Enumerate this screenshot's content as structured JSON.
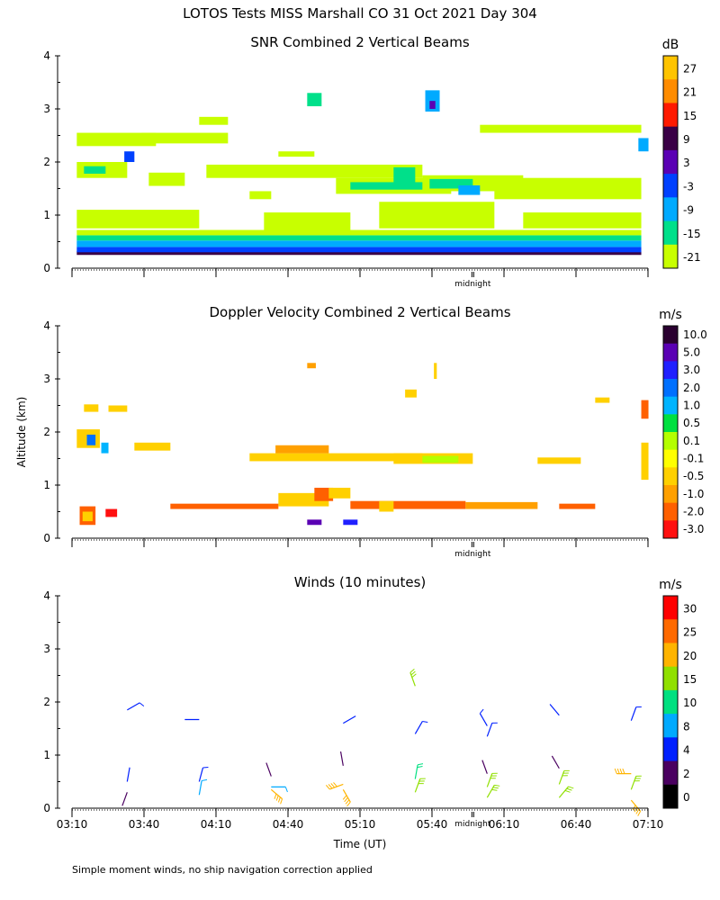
{
  "header": {
    "title": "LOTOS Tests MISS Marshall CO  31 Oct 2021 Day 304"
  },
  "axes": {
    "ylabel": "Altitude (km)",
    "xlabel": "Time (UT)",
    "y_ticks": [
      "0",
      "1",
      "2",
      "3",
      "4"
    ],
    "x_ticks": [
      "03:10",
      "03:40",
      "04:10",
      "04:40",
      "05:10",
      "05:40",
      "06:10",
      "06:40",
      "07:10"
    ],
    "midnight_label": "midnight"
  },
  "footer": {
    "note": "Simple moment winds, no ship navigation correction applied"
  },
  "chart_data": [
    {
      "type": "heatmap",
      "title": "SNR Combined 2 Vertical Beams",
      "xlim": [
        3.1667,
        7.1667
      ],
      "ylim": [
        0,
        4
      ],
      "colorbar": {
        "unit": "dB",
        "labels": [
          "27",
          "21",
          "15",
          "9",
          "3",
          "-3",
          "-9",
          "-15",
          "-21"
        ],
        "colors": [
          "#ffc400",
          "#ff8c00",
          "#ff1a00",
          "#3a0046",
          "#5a00b4",
          "#0040ff",
          "#00aaff",
          "#00e08a",
          "#c8ff00"
        ]
      },
      "layers": [
        {
          "from": 0.25,
          "to": 0.32,
          "color": "#3a0046"
        },
        {
          "from": 0.3,
          "to": 0.4,
          "color": "#0040ff"
        },
        {
          "from": 0.4,
          "to": 0.52,
          "color": "#00aaff"
        },
        {
          "from": 0.52,
          "to": 0.62,
          "color": "#00e08a"
        },
        {
          "from": 0.62,
          "to": 0.72,
          "color": "#c8ff00"
        }
      ],
      "patches": [
        {
          "t": 3.2,
          "t2": 3.55,
          "z": 1.7,
          "z2": 2.0,
          "color": "#c8ff00"
        },
        {
          "t": 3.25,
          "t2": 3.4,
          "z": 1.78,
          "z2": 1.92,
          "color": "#00e08a"
        },
        {
          "t": 3.2,
          "t2": 3.75,
          "z": 2.3,
          "z2": 2.55,
          "color": "#c8ff00"
        },
        {
          "t": 3.7,
          "t2": 3.95,
          "z": 1.55,
          "z2": 1.8,
          "color": "#c8ff00"
        },
        {
          "t": 3.2,
          "t2": 4.05,
          "z": 0.75,
          "z2": 1.1,
          "color": "#c8ff00"
        },
        {
          "t": 3.65,
          "t2": 4.25,
          "z": 2.35,
          "z2": 2.55,
          "color": "#c8ff00"
        },
        {
          "t": 4.1,
          "t2": 5.6,
          "z": 1.7,
          "z2": 1.95,
          "color": "#c8ff00"
        },
        {
          "t": 4.5,
          "t2": 5.1,
          "z": 0.7,
          "z2": 1.05,
          "color": "#c8ff00"
        },
        {
          "t": 4.6,
          "t2": 4.85,
          "z": 2.1,
          "z2": 2.2,
          "color": "#c8ff00"
        },
        {
          "t": 5.0,
          "t2": 5.8,
          "z": 1.4,
          "z2": 1.7,
          "color": "#c8ff00"
        },
        {
          "t": 5.1,
          "t2": 5.7,
          "z": 1.48,
          "z2": 1.62,
          "color": "#00e08a"
        },
        {
          "t": 5.3,
          "t2": 6.1,
          "z": 0.75,
          "z2": 1.25,
          "color": "#c8ff00"
        },
        {
          "t": 5.6,
          "t2": 6.3,
          "z": 1.45,
          "z2": 1.75,
          "color": "#c8ff00"
        },
        {
          "t": 5.65,
          "t2": 5.95,
          "z": 1.5,
          "z2": 1.68,
          "color": "#00e08a"
        },
        {
          "t": 5.85,
          "t2": 6.0,
          "z": 1.38,
          "z2": 1.56,
          "color": "#00aaff"
        },
        {
          "t": 6.1,
          "t2": 7.12,
          "z": 1.3,
          "z2": 1.7,
          "color": "#c8ff00"
        },
        {
          "t": 6.0,
          "t2": 7.12,
          "z": 2.55,
          "z2": 2.7,
          "color": "#c8ff00"
        },
        {
          "t": 6.3,
          "t2": 7.12,
          "z": 0.75,
          "z2": 1.05,
          "color": "#c8ff00"
        },
        {
          "t": 5.4,
          "t2": 5.55,
          "z": 1.55,
          "z2": 1.9,
          "color": "#00e08a"
        },
        {
          "t": 4.8,
          "t2": 4.9,
          "z": 3.05,
          "z2": 3.3,
          "color": "#00e08a"
        },
        {
          "t": 5.62,
          "t2": 5.72,
          "z": 2.95,
          "z2": 3.35,
          "color": "#00aaff"
        },
        {
          "t": 5.65,
          "t2": 5.69,
          "z": 3.0,
          "z2": 3.15,
          "color": "#5a00b4"
        },
        {
          "t": 3.53,
          "t2": 3.6,
          "z": 2.0,
          "z2": 2.2,
          "color": "#0040ff"
        },
        {
          "t": 7.1,
          "t2": 7.17,
          "z": 2.2,
          "z2": 2.45,
          "color": "#00aaff"
        },
        {
          "t": 4.05,
          "t2": 4.25,
          "z": 2.7,
          "z2": 2.85,
          "color": "#c8ff00"
        },
        {
          "t": 4.4,
          "t2": 4.55,
          "z": 1.3,
          "z2": 1.45,
          "color": "#c8ff00"
        }
      ]
    },
    {
      "type": "heatmap",
      "title": "Doppler Velocity Combined 2 Vertical Beams",
      "xlim": [
        3.1667,
        7.1667
      ],
      "ylim": [
        0,
        4
      ],
      "colorbar": {
        "unit": "m/s",
        "labels": [
          "10.0",
          "5.0",
          "3.0",
          "2.0",
          "1.0",
          "0.5",
          "0.1",
          "-0.1",
          "-0.5",
          "-1.0",
          "-2.0",
          "-3.0"
        ],
        "colors": [
          "#2a0030",
          "#5a00b4",
          "#2020ff",
          "#0070ff",
          "#00b4ff",
          "#00e040",
          "#b4ff00",
          "#ffff00",
          "#ffd000",
          "#ffa000",
          "#ff6000",
          "#ff1010"
        ]
      },
      "patches": [
        {
          "t": 3.22,
          "t2": 3.33,
          "z": 0.25,
          "z2": 0.6,
          "color": "#ff6000"
        },
        {
          "t": 3.24,
          "t2": 3.31,
          "z": 0.32,
          "z2": 0.5,
          "color": "#ffd000"
        },
        {
          "t": 3.4,
          "t2": 3.48,
          "z": 0.4,
          "z2": 0.55,
          "color": "#ff1010"
        },
        {
          "t": 3.2,
          "t2": 3.36,
          "z": 1.7,
          "z2": 2.05,
          "color": "#ffd000"
        },
        {
          "t": 3.27,
          "t2": 3.33,
          "z": 1.75,
          "z2": 1.95,
          "color": "#0070ff"
        },
        {
          "t": 3.37,
          "t2": 3.42,
          "z": 1.6,
          "z2": 1.8,
          "color": "#00b4ff"
        },
        {
          "t": 3.6,
          "t2": 3.85,
          "z": 1.65,
          "z2": 1.8,
          "color": "#ffd000"
        },
        {
          "t": 3.25,
          "t2": 3.35,
          "z": 2.38,
          "z2": 2.52,
          "color": "#ffd000"
        },
        {
          "t": 3.42,
          "t2": 3.55,
          "z": 2.38,
          "z2": 2.5,
          "color": "#ffd000"
        },
        {
          "t": 4.4,
          "t2": 5.6,
          "z": 1.45,
          "z2": 1.6,
          "color": "#ffd000"
        },
        {
          "t": 4.58,
          "t2": 4.95,
          "z": 1.6,
          "z2": 1.75,
          "color": "#ffa000"
        },
        {
          "t": 5.4,
          "t2": 5.95,
          "z": 1.4,
          "z2": 1.6,
          "color": "#ffd000"
        },
        {
          "t": 5.6,
          "t2": 5.85,
          "z": 1.42,
          "z2": 1.55,
          "color": "#b4ff00"
        },
        {
          "t": 6.4,
          "t2": 6.7,
          "z": 1.4,
          "z2": 1.52,
          "color": "#ffd000"
        },
        {
          "t": 4.6,
          "t2": 4.95,
          "z": 0.6,
          "z2": 0.85,
          "color": "#ffd000"
        },
        {
          "t": 4.85,
          "t2": 4.98,
          "z": 0.7,
          "z2": 0.95,
          "color": "#ff6000"
        },
        {
          "t": 4.95,
          "t2": 5.1,
          "z": 0.75,
          "z2": 0.95,
          "color": "#ffd000"
        },
        {
          "t": 3.85,
          "t2": 4.6,
          "z": 0.55,
          "z2": 0.65,
          "color": "#ff6000"
        },
        {
          "t": 5.1,
          "t2": 5.9,
          "z": 0.55,
          "z2": 0.7,
          "color": "#ff6000"
        },
        {
          "t": 5.3,
          "t2": 5.4,
          "z": 0.5,
          "z2": 0.7,
          "color": "#ffd000"
        },
        {
          "t": 5.9,
          "t2": 6.4,
          "z": 0.55,
          "z2": 0.68,
          "color": "#ffa000"
        },
        {
          "t": 6.55,
          "t2": 6.8,
          "z": 0.55,
          "z2": 0.65,
          "color": "#ff6000"
        },
        {
          "t": 4.8,
          "t2": 4.9,
          "z": 0.25,
          "z2": 0.35,
          "color": "#5a00b4"
        },
        {
          "t": 5.05,
          "t2": 5.15,
          "z": 0.25,
          "z2": 0.35,
          "color": "#2020ff"
        },
        {
          "t": 4.8,
          "t2": 4.86,
          "z": 3.2,
          "z2": 3.3,
          "color": "#ffa000"
        },
        {
          "t": 5.48,
          "t2": 5.56,
          "z": 2.65,
          "z2": 2.8,
          "color": "#ffd000"
        },
        {
          "t": 5.68,
          "t2": 5.7,
          "z": 3.0,
          "z2": 3.3,
          "color": "#ffd000"
        },
        {
          "t": 6.8,
          "t2": 6.9,
          "z": 2.55,
          "z2": 2.65,
          "color": "#ffd000"
        },
        {
          "t": 7.12,
          "t2": 7.17,
          "z": 2.25,
          "z2": 2.6,
          "color": "#ff6000"
        },
        {
          "t": 7.12,
          "t2": 7.17,
          "z": 1.1,
          "z2": 1.8,
          "color": "#ffd000"
        }
      ]
    },
    {
      "type": "scatter",
      "title": "Winds (10 minutes)",
      "xlim": [
        3.1667,
        7.1667
      ],
      "ylim": [
        0,
        4
      ],
      "colorbar": {
        "unit": "m/s",
        "labels": [
          "30",
          "25",
          "20",
          "15",
          "10",
          "8",
          "4",
          "2",
          "0"
        ],
        "colors": [
          "#ff0000",
          "#ff6a00",
          "#ffb400",
          "#90e000",
          "#00e080",
          "#00aaff",
          "#0020ff",
          "#4a0060",
          "#000000"
        ]
      },
      "barbs": [
        {
          "t": 3.55,
          "z": 1.85,
          "dir": 60,
          "spd": 5
        },
        {
          "t": 3.55,
          "z": 0.5,
          "dir": 10,
          "spd": 4
        },
        {
          "t": 3.55,
          "z": 0.3,
          "dir": 200,
          "spd": 3
        },
        {
          "t": 4.05,
          "z": 1.67,
          "dir": 270,
          "spd": 4
        },
        {
          "t": 4.05,
          "z": 0.5,
          "dir": 15,
          "spd": 6
        },
        {
          "t": 4.05,
          "z": 0.25,
          "dir": 10,
          "spd": 9
        },
        {
          "t": 4.55,
          "z": 0.6,
          "dir": 340,
          "spd": 3
        },
        {
          "t": 4.55,
          "z": 0.4,
          "dir": 90,
          "spd": 9
        },
        {
          "t": 4.55,
          "z": 0.35,
          "dir": 130,
          "spd": 23
        },
        {
          "t": 5.05,
          "z": 1.6,
          "dir": 60,
          "spd": 4
        },
        {
          "t": 5.05,
          "z": 0.8,
          "dir": 350,
          "spd": 2
        },
        {
          "t": 5.05,
          "z": 0.45,
          "dir": 250,
          "spd": 22
        },
        {
          "t": 5.05,
          "z": 0.35,
          "dir": 150,
          "spd": 24
        },
        {
          "t": 5.55,
          "z": 2.3,
          "dir": 340,
          "spd": 16
        },
        {
          "t": 5.55,
          "z": 1.4,
          "dir": 30,
          "spd": 5
        },
        {
          "t": 5.55,
          "z": 0.55,
          "dir": 10,
          "spd": 10
        },
        {
          "t": 5.55,
          "z": 0.3,
          "dir": 20,
          "spd": 15
        },
        {
          "t": 6.05,
          "z": 1.55,
          "dir": 330,
          "spd": 5
        },
        {
          "t": 6.05,
          "z": 1.35,
          "dir": 20,
          "spd": 5
        },
        {
          "t": 6.05,
          "z": 0.65,
          "dir": 340,
          "spd": 2
        },
        {
          "t": 6.05,
          "z": 0.4,
          "dir": 20,
          "spd": 16
        },
        {
          "t": 6.05,
          "z": 0.2,
          "dir": 30,
          "spd": 18
        },
        {
          "t": 6.55,
          "z": 1.75,
          "dir": 320,
          "spd": 4
        },
        {
          "t": 6.55,
          "z": 0.75,
          "dir": 330,
          "spd": 3
        },
        {
          "t": 6.55,
          "z": 0.45,
          "dir": 20,
          "spd": 16
        },
        {
          "t": 6.55,
          "z": 0.2,
          "dir": 40,
          "spd": 17
        },
        {
          "t": 7.05,
          "z": 1.65,
          "dir": 20,
          "spd": 5
        },
        {
          "t": 7.05,
          "z": 0.65,
          "dir": 270,
          "spd": 23
        },
        {
          "t": 7.05,
          "z": 0.35,
          "dir": 20,
          "spd": 16
        },
        {
          "t": 7.05,
          "z": 0.15,
          "dir": 140,
          "spd": 24
        }
      ]
    }
  ]
}
